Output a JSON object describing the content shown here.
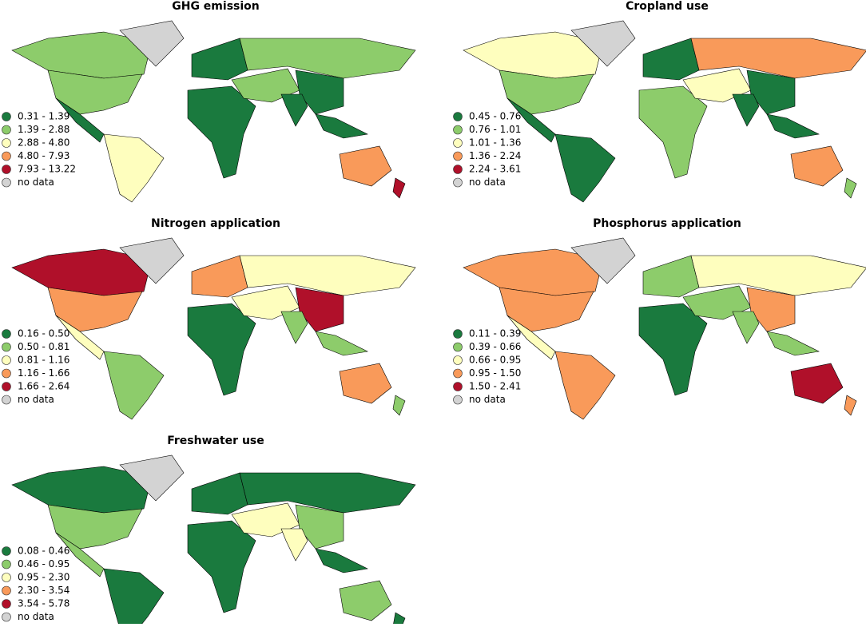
{
  "panels": [
    {
      "title": "GHG emission",
      "legend": [
        {
          "label": "0.31 - 1.39",
          "color": "#1a7a3e"
        },
        {
          "label": "1.39 - 2.88",
          "color": "#8dcc6b"
        },
        {
          "label": "2.88 - 4.80",
          "color": "#fefebe"
        },
        {
          "label": "4.80 - 7.93",
          "color": "#f99a5a"
        },
        {
          "label": "7.93 - 13.22",
          "color": "#b0102a"
        },
        {
          "label": "no data",
          "color": "#d3d3d3"
        }
      ]
    },
    {
      "title": "Cropland use",
      "legend": [
        {
          "label": "0.45 - 0.76",
          "color": "#1a7a3e"
        },
        {
          "label": "0.76 - 1.01",
          "color": "#8dcc6b"
        },
        {
          "label": "1.01 - 1.36",
          "color": "#fefebe"
        },
        {
          "label": "1.36 - 2.24",
          "color": "#f99a5a"
        },
        {
          "label": "2.24 - 3.61",
          "color": "#b0102a"
        },
        {
          "label": "no data",
          "color": "#d3d3d3"
        }
      ]
    },
    {
      "title": "Nitrogen application",
      "legend": [
        {
          "label": "0.16 - 0.50",
          "color": "#1a7a3e"
        },
        {
          "label": "0.50 - 0.81",
          "color": "#8dcc6b"
        },
        {
          "label": "0.81 - 1.16",
          "color": "#fefebe"
        },
        {
          "label": "1.16 - 1.66",
          "color": "#f99a5a"
        },
        {
          "label": "1.66 - 2.64",
          "color": "#b0102a"
        },
        {
          "label": "no data",
          "color": "#d3d3d3"
        }
      ]
    },
    {
      "title": "Phosphorus application",
      "legend": [
        {
          "label": "0.11 - 0.39",
          "color": "#1a7a3e"
        },
        {
          "label": "0.39 - 0.66",
          "color": "#8dcc6b"
        },
        {
          "label": "0.66 - 0.95",
          "color": "#fefebe"
        },
        {
          "label": "0.95 - 1.50",
          "color": "#f99a5a"
        },
        {
          "label": "1.50 - 2.41",
          "color": "#b0102a"
        },
        {
          "label": "no data",
          "color": "#d3d3d3"
        }
      ]
    },
    {
      "title": "Freshwater use",
      "legend": [
        {
          "label": "0.08 - 0.46",
          "color": "#1a7a3e"
        },
        {
          "label": "0.46 - 0.95",
          "color": "#8dcc6b"
        },
        {
          "label": "0.95 - 2.30",
          "color": "#fefebe"
        },
        {
          "label": "2.30 - 3.54",
          "color": "#f99a5a"
        },
        {
          "label": "3.54 - 5.78",
          "color": "#b0102a"
        },
        {
          "label": "no data",
          "color": "#d3d3d3"
        }
      ]
    }
  ]
}
